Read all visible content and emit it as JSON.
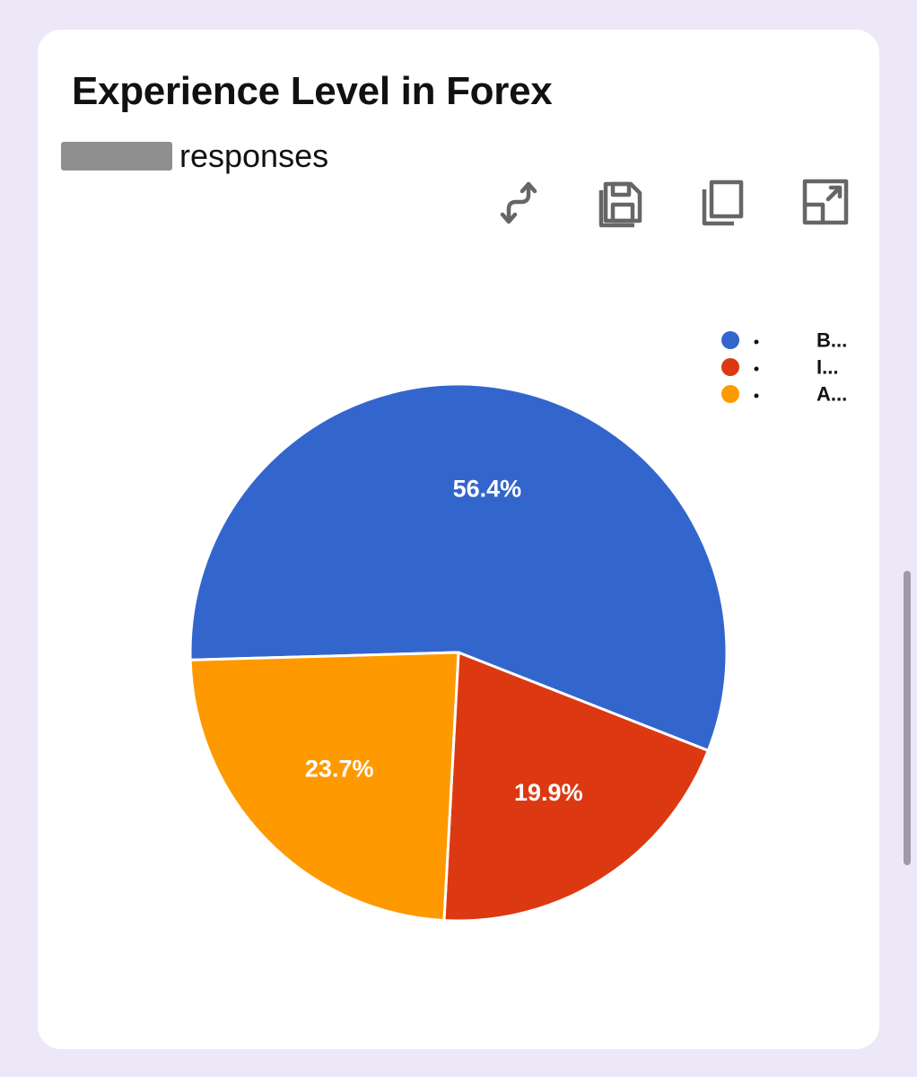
{
  "card": {
    "title": "Experience Level in Forex",
    "responses_suffix": "responses"
  },
  "toolbar": {
    "icons": [
      "swap-axes-icon",
      "save-icon",
      "copy-icon",
      "expand-icon"
    ]
  },
  "colors": {
    "background": "#ece8f7",
    "card": "#ffffff",
    "slice_1": "#3366cc",
    "slice_2": "#dc3912",
    "slice_3": "#ff9900"
  },
  "chart_data": {
    "type": "pie",
    "title": "Experience Level in Forex",
    "legend_position": "top-right",
    "slices": [
      {
        "label": "B...",
        "value": 56.4,
        "value_label": "56.4%",
        "color": "#3366cc"
      },
      {
        "label": "I...",
        "value": 19.9,
        "value_label": "19.9%",
        "color": "#dc3912"
      },
      {
        "label": "A...",
        "value": 23.7,
        "value_label": "23.7%",
        "color": "#ff9900"
      }
    ]
  }
}
